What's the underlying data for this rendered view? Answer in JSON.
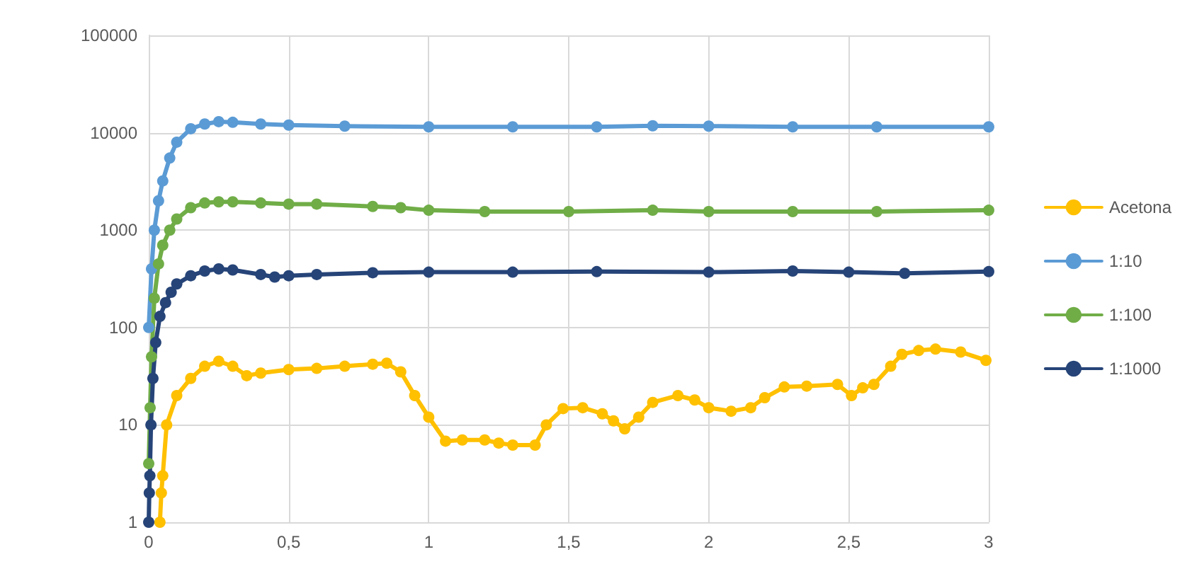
{
  "chart_data": {
    "type": "line",
    "log": "y",
    "marker": "circle",
    "line_style": "solid",
    "grid": true,
    "legend": "right",
    "xlim": [
      0,
      3
    ],
    "xticks": [
      0,
      {
        "value": 0.5,
        "label": "0,5"
      },
      1,
      {
        "value": 1.5,
        "label": "1,5"
      },
      2,
      {
        "value": 2.5,
        "label": "2,5"
      },
      3
    ],
    "ylim": [
      1,
      100000
    ],
    "yticks": [
      1,
      10,
      100,
      1000,
      10000,
      100000
    ],
    "series": [
      {
        "name": "Acetona",
        "color": "#ffc000",
        "x": [
          0.04,
          0.045,
          0.05,
          0.064,
          0.1,
          0.15,
          0.2,
          0.25,
          0.3,
          0.35,
          0.4,
          0.5,
          0.6,
          0.7,
          0.8,
          0.85,
          0.9,
          0.95,
          1.0,
          1.06,
          1.12,
          1.2,
          1.25,
          1.3,
          1.38,
          1.42,
          1.48,
          1.55,
          1.62,
          1.66,
          1.7,
          1.75,
          1.8,
          1.89,
          1.95,
          2.0,
          2.08,
          2.15,
          2.2,
          2.27,
          2.35,
          2.46,
          2.51,
          2.55,
          2.59,
          2.65,
          2.69,
          2.75,
          2.81,
          2.9,
          2.99
        ],
        "values": [
          1,
          2,
          3,
          10,
          20,
          30,
          40,
          45,
          40,
          32,
          34,
          37,
          38,
          40,
          42,
          43,
          35,
          20,
          12,
          6.8,
          7,
          7,
          6.5,
          6.2,
          6.2,
          10,
          14.7,
          15,
          13,
          11,
          9.1,
          12,
          17,
          20,
          18,
          15,
          13.8,
          15,
          19,
          24.5,
          25,
          26,
          20,
          24,
          26,
          40,
          53,
          58,
          60,
          56,
          46
        ]
      },
      {
        "name": "1:10",
        "color": "#5b9bd5",
        "x": [
          0,
          0.01,
          0.02,
          0.035,
          0.05,
          0.075,
          0.1,
          0.15,
          0.2,
          0.25,
          0.3,
          0.4,
          0.5,
          0.7,
          1.0,
          1.3,
          1.6,
          1.8,
          2.0,
          2.3,
          2.6,
          3.0
        ],
        "values": [
          100,
          400,
          1000,
          2000,
          3200,
          5500,
          8000,
          11000,
          12300,
          13000,
          12800,
          12300,
          12000,
          11700,
          11500,
          11500,
          11500,
          11800,
          11700,
          11500,
          11500,
          11500
        ]
      },
      {
        "name": "1:100",
        "color": "#70ad47",
        "x": [
          0,
          0.005,
          0.01,
          0.02,
          0.035,
          0.05,
          0.075,
          0.1,
          0.15,
          0.2,
          0.25,
          0.3,
          0.4,
          0.5,
          0.6,
          0.8,
          0.9,
          1.0,
          1.2,
          1.5,
          1.8,
          2.0,
          2.3,
          2.6,
          3.0
        ],
        "values": [
          4,
          15,
          50,
          200,
          450,
          700,
          1000,
          1300,
          1700,
          1900,
          1950,
          1950,
          1900,
          1850,
          1850,
          1750,
          1700,
          1600,
          1550,
          1550,
          1600,
          1550,
          1550,
          1550,
          1600
        ]
      },
      {
        "name": "1:1000",
        "color": "#264478",
        "x": [
          0,
          0.002,
          0.004,
          0.008,
          0.015,
          0.025,
          0.04,
          0.06,
          0.08,
          0.1,
          0.15,
          0.2,
          0.25,
          0.3,
          0.4,
          0.45,
          0.5,
          0.6,
          0.8,
          1.0,
          1.3,
          1.6,
          2.0,
          2.3,
          2.5,
          2.7,
          3.0
        ],
        "values": [
          1,
          2,
          3,
          10,
          30,
          70,
          130,
          180,
          230,
          280,
          340,
          380,
          400,
          390,
          350,
          330,
          340,
          350,
          365,
          370,
          370,
          375,
          370,
          380,
          370,
          360,
          375
        ]
      }
    ]
  }
}
